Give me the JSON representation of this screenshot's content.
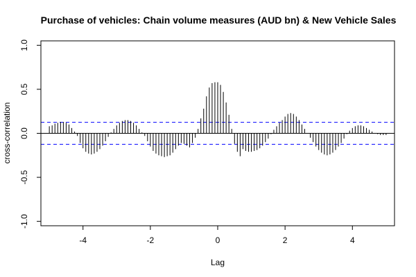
{
  "chart_data": {
    "type": "bar",
    "title": "Purchase of vehicles: Chain volume measures (AUD bn) & New Vehicle Sales",
    "xlabel": "Lag",
    "ylabel": "cross-correlation",
    "xlim": [
      -5.25,
      5.25
    ],
    "ylim": [
      -1.05,
      1.05
    ],
    "xticks": [
      -4,
      -2,
      0,
      2,
      4
    ],
    "xtick_labels": [
      "-4",
      "-2",
      "0",
      "2",
      "4"
    ],
    "yticks": [
      -1.0,
      -0.5,
      0.0,
      0.5,
      1.0
    ],
    "ytick_labels": [
      "-1.0",
      "-0.5",
      "0.0",
      "0.5",
      "1.0"
    ],
    "confidence_band": 0.125,
    "band_color": "#0000FF",
    "grid": false,
    "series": [
      {
        "x": [
          -5.0,
          -4.9167,
          -4.8333,
          -4.75,
          -4.6667,
          -4.5833,
          -4.5,
          -4.4167,
          -4.3333,
          -4.25,
          -4.1667,
          -4.0833,
          -4.0,
          -3.9167,
          -3.8333,
          -3.75,
          -3.6667,
          -3.5833,
          -3.5,
          -3.4167,
          -3.3333,
          -3.25,
          -3.1667,
          -3.0833,
          -3.0,
          -2.9167,
          -2.8333,
          -2.75,
          -2.6667,
          -2.5833,
          -2.5,
          -2.4167,
          -2.3333,
          -2.25,
          -2.1667,
          -2.0833,
          -2.0,
          -1.9167,
          -1.8333,
          -1.75,
          -1.6667,
          -1.5833,
          -1.5,
          -1.4167,
          -1.3333,
          -1.25,
          -1.1667,
          -1.0833,
          -1.0,
          -0.9167,
          -0.8333,
          -0.75,
          -0.6667,
          -0.5833,
          -0.5,
          -0.4167,
          -0.3333,
          -0.25,
          -0.1667,
          -0.0833,
          0.0,
          0.0833,
          0.1667,
          0.25,
          0.3333,
          0.4167,
          0.5,
          0.5833,
          0.6667,
          0.75,
          0.8333,
          0.9167,
          1.0,
          1.0833,
          1.1667,
          1.25,
          1.3333,
          1.4167,
          1.5,
          1.5833,
          1.6667,
          1.75,
          1.8333,
          1.9167,
          2.0,
          2.0833,
          2.1667,
          2.25,
          2.3333,
          2.4167,
          2.5,
          2.5833,
          2.6667,
          2.75,
          2.8333,
          2.9167,
          3.0,
          3.0833,
          3.1667,
          3.25,
          3.3333,
          3.4167,
          3.5,
          3.5833,
          3.6667,
          3.75,
          3.8333,
          3.9167,
          4.0,
          4.0833,
          4.1667,
          4.25,
          4.3333,
          4.4167,
          4.5,
          4.5833,
          4.6667,
          4.75,
          4.8333,
          4.9167,
          5.0
        ],
        "values": [
          0.08,
          0.09,
          0.11,
          0.12,
          0.13,
          0.13,
          0.12,
          0.1,
          0.06,
          0.02,
          -0.03,
          -0.11,
          -0.17,
          -0.21,
          -0.23,
          -0.24,
          -0.23,
          -0.21,
          -0.18,
          -0.14,
          -0.09,
          -0.04,
          0.01,
          0.05,
          0.09,
          0.12,
          0.14,
          0.15,
          0.15,
          0.14,
          0.12,
          0.09,
          0.05,
          0.01,
          -0.03,
          -0.09,
          -0.15,
          -0.2,
          -0.23,
          -0.25,
          -0.26,
          -0.27,
          -0.26,
          -0.25,
          -0.22,
          -0.18,
          -0.14,
          -0.11,
          -0.12,
          -0.14,
          -0.16,
          -0.11,
          -0.05,
          0.05,
          0.17,
          0.28,
          0.42,
          0.52,
          0.57,
          0.58,
          0.58,
          0.55,
          0.47,
          0.35,
          0.21,
          0.05,
          -0.12,
          -0.21,
          -0.26,
          -0.18,
          -0.2,
          -0.21,
          -0.21,
          -0.2,
          -0.19,
          -0.17,
          -0.14,
          -0.1,
          -0.06,
          -0.01,
          0.04,
          0.08,
          0.12,
          0.15,
          0.19,
          0.22,
          0.23,
          0.22,
          0.19,
          0.15,
          0.1,
          0.05,
          0.0,
          -0.05,
          -0.1,
          -0.15,
          -0.19,
          -0.22,
          -0.24,
          -0.25,
          -0.24,
          -0.22,
          -0.19,
          -0.15,
          -0.11,
          -0.06,
          -0.01,
          0.03,
          0.06,
          0.08,
          0.09,
          0.09,
          0.08,
          0.06,
          0.04,
          0.02,
          0.0,
          -0.01,
          -0.02,
          -0.02,
          -0.02
        ]
      }
    ]
  }
}
